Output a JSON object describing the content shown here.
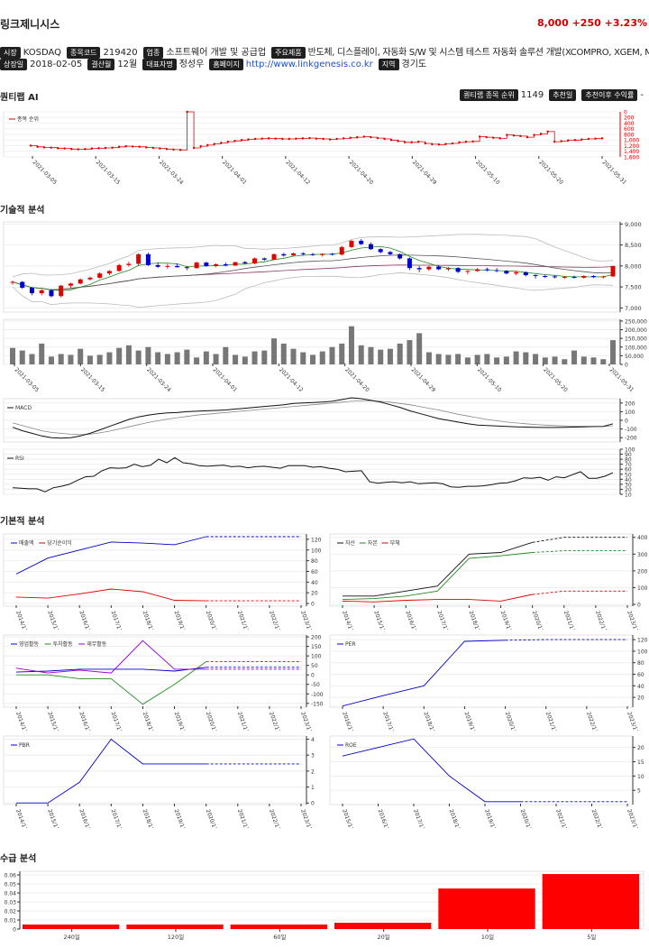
{
  "header": {
    "name": "링크제니시스",
    "price": "8,000",
    "change": "+250",
    "change_pct": "+3.23%"
  },
  "info": {
    "market_label": "시장",
    "market": "KOSDAQ",
    "code_label": "종목코드",
    "code": "219420",
    "industry_label": "업종",
    "industry": "소프트웨어 개발 및 공급업",
    "products_label": "주요제품",
    "products": "반도체, 디스플레이, 자동화 S/W 및 시스템 테스트 자동화 솔루션 개발(XCOMPRO, XGEM, MAT)",
    "listed_label": "상장일",
    "listed": "2018-02-05",
    "fiscal_label": "결산월",
    "fiscal": "12월",
    "ceo_label": "대표자명",
    "ceo": "정성우",
    "homepage_label": "홈페이지",
    "homepage": "http://www.linkgenesis.co.kr",
    "region_label": "지역",
    "region": "경기도"
  },
  "sections": {
    "ai": "퀀티랩 AI",
    "tech": "기술적 분석",
    "fund": "기본적 분석",
    "supply": "수급 분석"
  },
  "ai_bar": {
    "rank_label": "퀀티랩 종목 순위",
    "rank": "1149",
    "date_label": "추천일",
    "return_label": "추천이후 수익률",
    "return": "-"
  },
  "colors": {
    "red": "#e00000",
    "blue": "#0000cc",
    "green": "#228b22",
    "purple": "#9400d3",
    "bar": "#777777"
  },
  "chart_data": [
    {
      "id": "rank",
      "type": "line",
      "legend": [
        "종목 순위"
      ],
      "x_ticks": [
        "2021-03-05",
        "2021-03-15",
        "2021-03-24",
        "2021-04-01",
        "2021-04-12",
        "2021-04-20",
        "2021-04-29",
        "2021-05-10",
        "2021-05-20",
        "2021-05-31"
      ],
      "y_ticks": [
        0,
        200,
        400,
        600,
        800,
        1000,
        1200,
        1400,
        1600
      ],
      "ylim": [
        0,
        1600
      ],
      "values": [
        1200,
        1240,
        1260,
        1270,
        1290,
        1300,
        1320,
        1330,
        1320,
        1300,
        1290,
        1280,
        1270,
        1240,
        1220,
        1230,
        1240,
        1260,
        1280,
        1300,
        1320,
        1340,
        1350,
        0,
        1280,
        1220,
        1180,
        1140,
        1100,
        1060,
        1030,
        1000,
        980,
        960,
        950,
        940,
        950,
        960,
        960,
        950,
        940,
        930,
        950,
        960,
        980,
        960,
        940,
        920,
        900,
        880,
        900,
        930,
        960,
        1000,
        1040,
        1080,
        1080,
        1060,
        1120,
        1150,
        1160,
        1140,
        1120,
        1080,
        1060,
        1050,
        880,
        900,
        920,
        940,
        820,
        840,
        860,
        900,
        820,
        780,
        700,
        1060,
        1040,
        1010,
        1000,
        980,
        960,
        950,
        940
      ]
    },
    {
      "id": "price",
      "type": "candlestick",
      "y_ticks": [
        7000,
        7500,
        8000,
        8500,
        9000
      ],
      "ylim": [
        6900,
        9050
      ],
      "ohlc": [
        [
          7600,
          7650,
          7550,
          7620
        ],
        [
          7620,
          7640,
          7450,
          7480
        ],
        [
          7480,
          7500,
          7300,
          7350
        ],
        [
          7350,
          7450,
          7300,
          7420
        ],
        [
          7420,
          7450,
          7250,
          7280
        ],
        [
          7280,
          7550,
          7250,
          7530
        ],
        [
          7530,
          7600,
          7480,
          7580
        ],
        [
          7580,
          7700,
          7560,
          7680
        ],
        [
          7680,
          7750,
          7650,
          7720
        ],
        [
          7720,
          7850,
          7700,
          7820
        ],
        [
          7820,
          7900,
          7780,
          7880
        ],
        [
          7880,
          8050,
          7860,
          8020
        ],
        [
          8020,
          8100,
          7980,
          8050
        ],
        [
          8050,
          8300,
          8000,
          8280
        ],
        [
          8280,
          8320,
          8000,
          8020
        ],
        [
          8020,
          8080,
          7950,
          7980
        ],
        [
          7980,
          8050,
          7930,
          8000
        ],
        [
          8000,
          8060,
          7960,
          7970
        ],
        [
          7970,
          8000,
          7900,
          7950
        ],
        [
          7950,
          8100,
          7930,
          8080
        ],
        [
          8080,
          8100,
          7980,
          8000
        ],
        [
          8000,
          8060,
          7970,
          8040
        ],
        [
          8040,
          8080,
          7990,
          8010
        ],
        [
          8010,
          8100,
          8000,
          8090
        ],
        [
          8090,
          8120,
          8040,
          8060
        ],
        [
          8060,
          8200,
          8040,
          8180
        ],
        [
          8180,
          8200,
          8120,
          8150
        ],
        [
          8150,
          8300,
          8140,
          8280
        ],
        [
          8280,
          8310,
          8220,
          8250
        ],
        [
          8250,
          8320,
          8240,
          8300
        ],
        [
          8300,
          8330,
          8250,
          8280
        ],
        [
          8280,
          8310,
          8240,
          8260
        ],
        [
          8260,
          8300,
          8220,
          8290
        ],
        [
          8290,
          8310,
          8250,
          8270
        ],
        [
          8270,
          8480,
          8250,
          8450
        ],
        [
          8450,
          8620,
          8420,
          8600
        ],
        [
          8600,
          8640,
          8500,
          8520
        ],
        [
          8520,
          8560,
          8380,
          8400
        ],
        [
          8400,
          8420,
          8300,
          8330
        ],
        [
          8330,
          8360,
          8250,
          8280
        ],
        [
          8280,
          8300,
          8150,
          8180
        ],
        [
          8180,
          8200,
          7900,
          7950
        ],
        [
          7950,
          8000,
          7850,
          7920
        ],
        [
          7920,
          8000,
          7880,
          7980
        ],
        [
          7980,
          8020,
          7900,
          7920
        ],
        [
          7920,
          7980,
          7880,
          7950
        ],
        [
          7950,
          7970,
          7830,
          7860
        ],
        [
          7860,
          7900,
          7800,
          7880
        ],
        [
          7880,
          7950,
          7860,
          7920
        ],
        [
          7920,
          7960,
          7870,
          7900
        ],
        [
          7900,
          7950,
          7850,
          7880
        ],
        [
          7880,
          7900,
          7800,
          7820
        ],
        [
          7820,
          7880,
          7780,
          7850
        ],
        [
          7850,
          7870,
          7750,
          7780
        ],
        [
          7780,
          7800,
          7700,
          7760
        ],
        [
          7760,
          7790,
          7710,
          7750
        ],
        [
          7750,
          7780,
          7700,
          7730
        ],
        [
          7730,
          7760,
          7690,
          7740
        ],
        [
          7740,
          7770,
          7700,
          7720
        ],
        [
          7720,
          7780,
          7700,
          7760
        ],
        [
          7760,
          7780,
          7710,
          7740
        ],
        [
          7740,
          7770,
          7700,
          7750
        ],
        [
          7750,
          8000,
          7740,
          8000
        ]
      ],
      "volume_ticks": [
        0,
        50000,
        100000,
        150000,
        200000,
        250000
      ],
      "volume_lim": [
        0,
        260000
      ],
      "volume": [
        95000,
        80000,
        60000,
        120000,
        45000,
        60000,
        55000,
        90000,
        50000,
        55000,
        70000,
        95000,
        110000,
        80000,
        100000,
        70000,
        60000,
        70000,
        85000,
        40000,
        75000,
        60000,
        100000,
        55000,
        45000,
        75000,
        80000,
        150000,
        120000,
        90000,
        70000,
        55000,
        75000,
        100000,
        120000,
        220000,
        110000,
        100000,
        85000,
        90000,
        120000,
        140000,
        180000,
        70000,
        60000,
        55000,
        60000,
        40000,
        55000,
        60000,
        40000,
        45000,
        75000,
        70000,
        60000,
        40000,
        45000,
        30000,
        80000,
        45000,
        40000,
        30000,
        140000
      ],
      "x_ticks": [
        "2021-03-05",
        "2021-03-15",
        "2021-03-24",
        "2021-04-01",
        "2021-04-12",
        "2021-04-20",
        "2021-04-29",
        "2021-05-10",
        "2021-05-20",
        "2021-05-31"
      ]
    },
    {
      "id": "macd",
      "type": "line",
      "legend": [
        "MACD"
      ],
      "y_ticks": [
        200,
        100,
        0,
        -100,
        -200
      ],
      "ylim": [
        -250,
        250
      ],
      "macd": [
        -80,
        -120,
        -150,
        -180,
        -200,
        -205,
        -200,
        -180,
        -150,
        -110,
        -70,
        -30,
        10,
        40,
        60,
        75,
        85,
        90,
        100,
        105,
        110,
        115,
        120,
        130,
        140,
        150,
        160,
        170,
        180,
        195,
        200,
        205,
        210,
        220,
        240,
        260,
        250,
        230,
        210,
        180,
        150,
        110,
        80,
        50,
        20,
        0,
        -20,
        -40,
        -55,
        -60,
        -65,
        -70,
        -75,
        -78,
        -80,
        -82,
        -82,
        -80,
        -78,
        -75,
        -72,
        -70,
        -40
      ],
      "signal": [
        -30,
        -60,
        -90,
        -120,
        -140,
        -150,
        -160,
        -165,
        -160,
        -145,
        -125,
        -100,
        -75,
        -50,
        -25,
        -5,
        15,
        30,
        45,
        60,
        70,
        80,
        90,
        100,
        110,
        120,
        130,
        140,
        150,
        160,
        170,
        180,
        190,
        200,
        210,
        220,
        225,
        225,
        220,
        210,
        195,
        180,
        160,
        140,
        120,
        95,
        70,
        50,
        30,
        10,
        -5,
        -20,
        -30,
        -40,
        -48,
        -55,
        -60,
        -65,
        -68,
        -70,
        -72,
        -72,
        -62
      ]
    },
    {
      "id": "rsi",
      "type": "line",
      "legend": [
        "RSI"
      ],
      "y_ticks": [
        10,
        20,
        30,
        40,
        50,
        60,
        70,
        80,
        90,
        100
      ],
      "ylim": [
        10,
        100
      ],
      "values": [
        23,
        22,
        21,
        21,
        15,
        23,
        26,
        30,
        38,
        45,
        46,
        57,
        63,
        62,
        63,
        70,
        65,
        68,
        80,
        73,
        83,
        73,
        71,
        67,
        66,
        67,
        68,
        65,
        66,
        63,
        65,
        66,
        64,
        62,
        67,
        67,
        67,
        64,
        65,
        62,
        60,
        55,
        56,
        57,
        35,
        32,
        34,
        35,
        33,
        35,
        31,
        32,
        33,
        31,
        25,
        24,
        26,
        26,
        27,
        29,
        32,
        33,
        37,
        43,
        42,
        44,
        38,
        45,
        43,
        49,
        55,
        42,
        42,
        46,
        53
      ]
    },
    {
      "id": "revenue",
      "type": "line",
      "legend": [
        "매출액",
        "당기순이익"
      ],
      "x_ticks": [
        "2014/12",
        "2015/12",
        "2016/12",
        "2017/12",
        "2018/12",
        "2019/12",
        "2020/12",
        "2021/12",
        "2022/12",
        "2023/12"
      ],
      "y_ticks": [
        0,
        20,
        40,
        60,
        80,
        100,
        120
      ],
      "ylim": [
        -5,
        130
      ],
      "series": [
        {
          "name": "매출액",
          "values": [
            55,
            85,
            100,
            115,
            113,
            110,
            125,
            125,
            125,
            125
          ]
        },
        {
          "name": "당기순이익",
          "values": [
            12,
            10,
            18,
            27,
            22,
            6,
            5,
            5,
            5,
            5
          ]
        }
      ]
    },
    {
      "id": "balance",
      "type": "line",
      "legend": [
        "자산",
        "자본",
        "부채"
      ],
      "x_ticks": [
        "2014/12",
        "2015/12",
        "2016/12",
        "2017/12",
        "2018/12",
        "2019/12",
        "2020/12",
        "2021/12",
        "2022/12",
        "2023/12"
      ],
      "y_ticks": [
        0,
        100,
        200,
        300,
        400
      ],
      "ylim": [
        -10,
        420
      ],
      "series": [
        {
          "name": "자산",
          "values": [
            50,
            50,
            80,
            110,
            300,
            310,
            370,
            400,
            400,
            400
          ]
        },
        {
          "name": "자본",
          "values": [
            30,
            35,
            50,
            80,
            275,
            290,
            310,
            320,
            320,
            320
          ]
        },
        {
          "name": "부채",
          "values": [
            20,
            15,
            25,
            30,
            30,
            20,
            60,
            80,
            80,
            80
          ]
        }
      ]
    },
    {
      "id": "cashflow",
      "type": "line",
      "legend": [
        "영업활동",
        "투자활동",
        "재무활동"
      ],
      "x_ticks": [
        "2014/12",
        "2015/12",
        "2016/12",
        "2017/12",
        "2018/12",
        "2019/12",
        "2020/12",
        "2021/12",
        "2022/12",
        "2023/12"
      ],
      "y_ticks": [
        200,
        150,
        100,
        50,
        0,
        -50,
        -100,
        -150
      ],
      "ylim": [
        -170,
        210
      ],
      "series": [
        {
          "name": "영업활동",
          "values": [
            15,
            20,
            30,
            30,
            30,
            20,
            40,
            40,
            40,
            40
          ]
        },
        {
          "name": "투자활동",
          "values": [
            0,
            0,
            -20,
            -20,
            -155,
            -50,
            70,
            70,
            70,
            70
          ]
        },
        {
          "name": "재무활동",
          "values": [
            35,
            10,
            25,
            10,
            180,
            30,
            30,
            30,
            30,
            30
          ]
        }
      ]
    },
    {
      "id": "per",
      "type": "line",
      "legend": [
        "PER"
      ],
      "x_ticks": [
        "2016/12",
        "2017/12",
        "2018/12",
        "2019/12",
        "2020/12",
        "2021/12",
        "2022/12",
        "2023/12"
      ],
      "y_ticks": [
        20,
        40,
        60,
        80,
        100,
        120
      ],
      "ylim": [
        3,
        128
      ],
      "series": [
        {
          "name": "PER",
          "values": [
            5,
            23,
            40,
            117,
            119,
            120,
            120,
            120
          ]
        }
      ]
    },
    {
      "id": "pbr",
      "type": "line",
      "legend": [
        "PBR"
      ],
      "x_ticks": [
        "2014/12",
        "2015/12",
        "2016/12",
        "2017/12",
        "2018/12",
        "2019/12",
        "2020/12",
        "2021/12",
        "2022/12",
        "2023/12"
      ],
      "y_ticks": [
        0,
        1,
        2,
        3,
        4
      ],
      "ylim": [
        -0.1,
        4.2
      ],
      "series": [
        {
          "name": "PBR",
          "values": [
            0,
            0,
            1.3,
            4.0,
            2.45,
            2.45,
            2.45,
            2.45,
            2.45,
            2.45
          ]
        }
      ]
    },
    {
      "id": "roe",
      "type": "line",
      "legend": [
        "ROE"
      ],
      "x_ticks": [
        "2015/12",
        "2016/12",
        "2017/12",
        "2018/12",
        "2019/12",
        "2020/12",
        "2021/12",
        "2022/12",
        "2023/12"
      ],
      "y_ticks": [
        5,
        10,
        15,
        20
      ],
      "ylim": [
        0,
        24
      ],
      "series": [
        {
          "name": "ROE",
          "values": [
            17,
            20,
            23,
            10,
            1,
            1,
            1,
            1,
            1
          ]
        }
      ]
    },
    {
      "id": "supply",
      "type": "bar",
      "categories": [
        "240일",
        "120일",
        "60일",
        "20일",
        "10일",
        "5일"
      ],
      "values": [
        0.005,
        0.005,
        0.005,
        0.007,
        0.045,
        0.061
      ],
      "y_ticks": [
        0,
        0.01,
        0.02,
        0.03,
        0.04,
        0.05,
        0.06
      ],
      "ylim": [
        0,
        0.064
      ]
    }
  ]
}
